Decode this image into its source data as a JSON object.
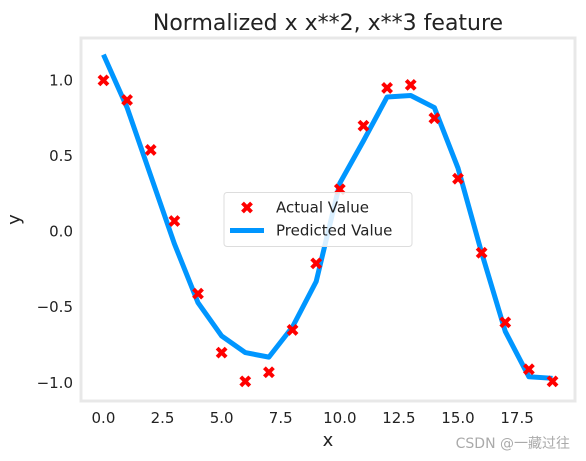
{
  "watermark": "CSDN @一藏过往",
  "colors": {
    "actual": "#ff0000",
    "predicted": "#0096ff",
    "frame": "#e8e8e8"
  },
  "chart_data": {
    "type": "scatter",
    "title": "Normalized x x**2, x**3 feature",
    "xlabel": "x",
    "ylabel": "y",
    "xlim": [
      -0.95,
      19.95
    ],
    "ylim": [
      -1.12,
      1.28
    ],
    "xticks": [
      0.0,
      2.5,
      5.0,
      7.5,
      10.0,
      12.5,
      15.0,
      17.5
    ],
    "xtick_labels": [
      "0.0",
      "2.5",
      "5.0",
      "7.5",
      "10.0",
      "12.5",
      "15.0",
      "17.5"
    ],
    "yticks": [
      1.0,
      0.5,
      0.0,
      -0.5,
      -1.0
    ],
    "ytick_labels": [
      "1.0",
      "0.5",
      "0.0",
      "−0.5",
      "−1.0"
    ],
    "grid": false,
    "legend_position": "center",
    "series": [
      {
        "name": "Actual Value",
        "kind": "scatter",
        "marker": "X",
        "x": [
          0,
          1,
          2,
          3,
          4,
          5,
          6,
          7,
          8,
          9,
          10,
          11,
          12,
          13,
          14,
          15,
          16,
          17,
          18,
          19
        ],
        "y": [
          1.0,
          0.87,
          0.54,
          0.07,
          -0.41,
          -0.8,
          -0.99,
          -0.93,
          -0.65,
          -0.21,
          0.28,
          0.7,
          0.95,
          0.97,
          0.75,
          0.35,
          -0.14,
          -0.6,
          -0.91,
          -0.99
        ]
      },
      {
        "name": "Predicted Value",
        "kind": "line",
        "x": [
          0,
          1,
          2,
          3,
          4,
          5,
          6,
          7,
          8,
          9,
          10,
          11,
          12,
          13,
          14,
          15,
          16,
          17,
          18,
          19
        ],
        "y": [
          1.17,
          0.82,
          0.37,
          -0.08,
          -0.47,
          -0.69,
          -0.8,
          -0.83,
          -0.63,
          -0.33,
          0.32,
          0.6,
          0.89,
          0.9,
          0.82,
          0.42,
          -0.14,
          -0.66,
          -0.96,
          -0.97
        ]
      }
    ]
  }
}
